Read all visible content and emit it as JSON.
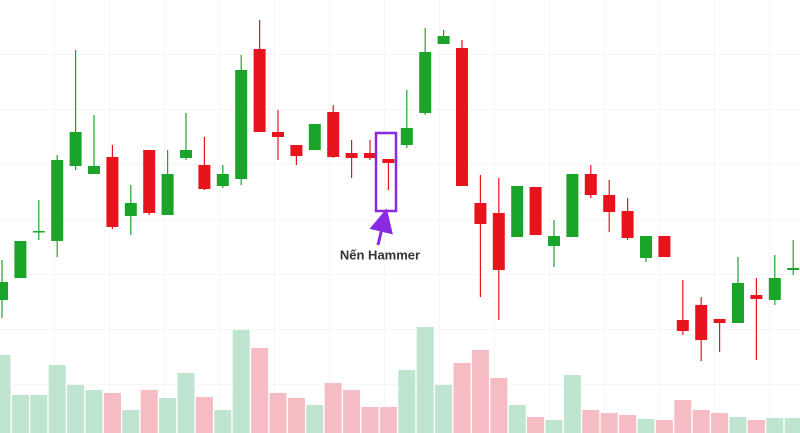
{
  "chart_data": {
    "type": "candlestick",
    "annotation": "Nến Hammer",
    "open": [
      133,
      155,
      201,
      192,
      267,
      259,
      276,
      217,
      283,
      218,
      275,
      268,
      247,
      254,
      384,
      301,
      288,
      283,
      321,
      280,
      280,
      274,
      288,
      320,
      389,
      385,
      230,
      220,
      196,
      246,
      187,
      196,
      259,
      238,
      222,
      175,
      197,
      113,
      128,
      114,
      110,
      138,
      133,
      163
    ],
    "high": [
      173,
      192,
      233,
      278,
      383,
      318,
      288,
      248,
      283,
      283,
      320,
      296,
      268,
      378,
      413,
      323,
      288,
      309,
      328,
      293,
      293,
      274,
      343,
      405,
      403,
      393,
      258,
      255,
      247,
      246,
      213,
      259,
      268,
      253,
      235,
      197,
      197,
      153,
      136,
      114,
      176,
      155,
      178,
      193
    ],
    "low": [
      115,
      155,
      193,
      176,
      263,
      259,
      204,
      198,
      218,
      218,
      273,
      243,
      245,
      248,
      301,
      273,
      268,
      283,
      275,
      255,
      273,
      243,
      285,
      318,
      389,
      247,
      136,
      113,
      196,
      198,
      166,
      196,
      235,
      201,
      193,
      171,
      176,
      98,
      72,
      81,
      110,
      73,
      128,
      158
    ],
    "close": [
      151,
      192,
      202,
      273,
      301,
      267,
      206,
      230,
      220,
      259,
      283,
      244,
      259,
      363,
      301,
      296,
      277,
      309,
      276,
      275,
      275,
      270,
      305,
      381,
      397,
      247,
      209,
      163,
      247,
      198,
      197,
      259,
      238,
      221,
      195,
      197,
      176,
      102,
      93,
      110,
      150,
      134,
      155,
      165
    ],
    "volume": [
      78,
      38,
      38,
      68,
      48,
      43,
      40,
      23,
      43,
      35,
      60,
      36,
      23,
      103,
      85,
      40,
      35,
      28,
      50,
      43,
      26,
      26,
      63,
      106,
      48,
      70,
      83,
      55,
      28,
      16,
      13,
      58,
      23,
      20,
      18,
      14,
      13,
      33,
      23,
      20,
      16,
      13,
      15,
      15
    ],
    "ylim": [
      0,
      433
    ],
    "y2lim": [
      0,
      433
    ],
    "up_color": "#1aa52a",
    "down_color": "#e8141d",
    "volume_up_color": "#bfe5d1",
    "volume_down_color": "#f6bcc4",
    "grid": true
  }
}
